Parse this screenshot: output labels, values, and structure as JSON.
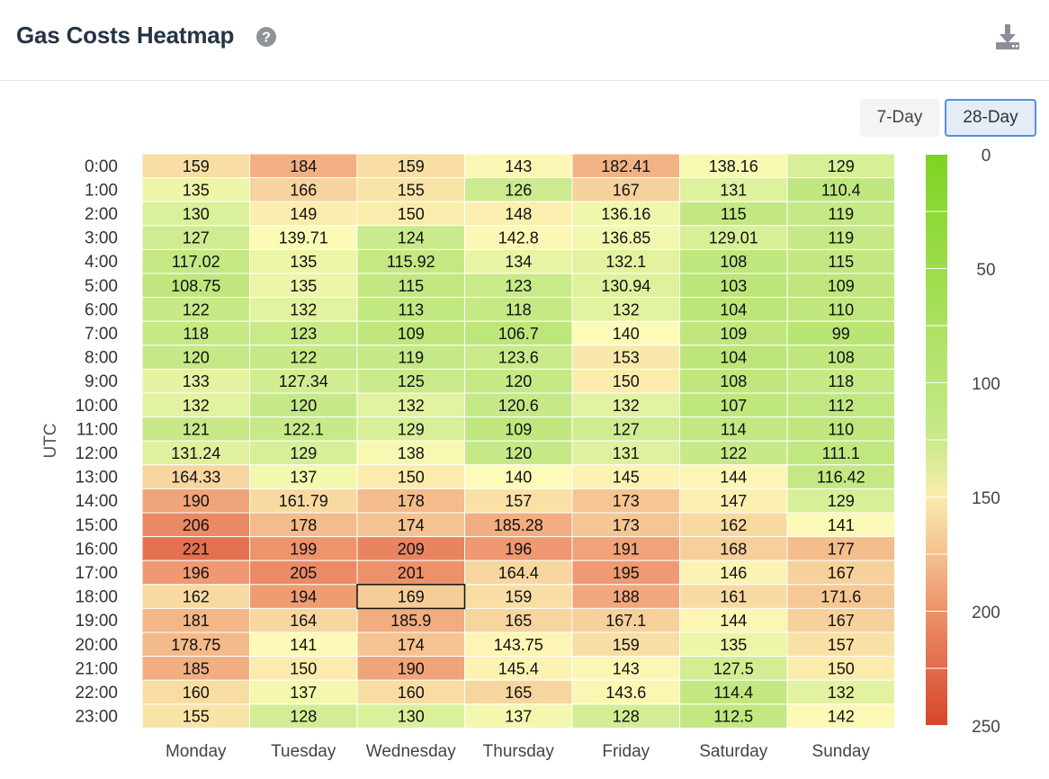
{
  "header": {
    "title": "Gas Costs Heatmap",
    "help_icon": "question-circle-icon",
    "download_icon": "download-icon"
  },
  "range_buttons": [
    {
      "label": "7-Day",
      "active": false
    },
    {
      "label": "28-Day",
      "active": true
    }
  ],
  "colors": {
    "low": "#7ed321",
    "mid": "#fdfbb7",
    "high": "#d7442a",
    "accent": "#5a8fd6"
  },
  "chart_data": {
    "type": "heatmap",
    "title": "",
    "xlabel": "",
    "ylabel": "UTC",
    "x_categories": [
      "Monday",
      "Tuesday",
      "Wednesday",
      "Thursday",
      "Friday",
      "Saturday",
      "Sunday"
    ],
    "y_categories": [
      "0:00",
      "1:00",
      "2:00",
      "3:00",
      "4:00",
      "5:00",
      "6:00",
      "7:00",
      "8:00",
      "9:00",
      "10:00",
      "11:00",
      "12:00",
      "13:00",
      "14:00",
      "15:00",
      "16:00",
      "17:00",
      "18:00",
      "19:00",
      "20:00",
      "21:00",
      "22:00",
      "23:00"
    ],
    "values": [
      [
        "159",
        "184",
        "159",
        "143",
        "182.41",
        "138.16",
        "129"
      ],
      [
        "135",
        "166",
        "155",
        "126",
        "167",
        "131",
        "110.4"
      ],
      [
        "130",
        "149",
        "150",
        "148",
        "136.16",
        "115",
        "119"
      ],
      [
        "127",
        "139.71",
        "124",
        "142.8",
        "136.85",
        "129.01",
        "119"
      ],
      [
        "117.02",
        "135",
        "115.92",
        "134",
        "132.1",
        "108",
        "115"
      ],
      [
        "108.75",
        "135",
        "115",
        "123",
        "130.94",
        "103",
        "109"
      ],
      [
        "122",
        "132",
        "113",
        "118",
        "132",
        "104",
        "110"
      ],
      [
        "118",
        "123",
        "109",
        "106.7",
        "140",
        "109",
        "99"
      ],
      [
        "120",
        "122",
        "119",
        "123.6",
        "153",
        "104",
        "108"
      ],
      [
        "133",
        "127.34",
        "125",
        "120",
        "150",
        "108",
        "118"
      ],
      [
        "132",
        "120",
        "132",
        "120.6",
        "132",
        "107",
        "112"
      ],
      [
        "121",
        "122.1",
        "129",
        "109",
        "127",
        "114",
        "110"
      ],
      [
        "131.24",
        "129",
        "138",
        "120",
        "131",
        "122",
        "111.1"
      ],
      [
        "164.33",
        "137",
        "150",
        "140",
        "145",
        "144",
        "116.42"
      ],
      [
        "190",
        "161.79",
        "178",
        "157",
        "173",
        "147",
        "129"
      ],
      [
        "206",
        "178",
        "174",
        "185.28",
        "173",
        "162",
        "141"
      ],
      [
        "221",
        "199",
        "209",
        "196",
        "191",
        "168",
        "177"
      ],
      [
        "196",
        "205",
        "201",
        "164.4",
        "195",
        "146",
        "167"
      ],
      [
        "162",
        "194",
        "169",
        "159",
        "188",
        "161",
        "171.6"
      ],
      [
        "181",
        "164",
        "185.9",
        "165",
        "167.1",
        "144",
        "167"
      ],
      [
        "178.75",
        "141",
        "174",
        "143.75",
        "159",
        "135",
        "157"
      ],
      [
        "185",
        "150",
        "190",
        "145.4",
        "143",
        "127.5",
        "150"
      ],
      [
        "160",
        "137",
        "160",
        "165",
        "143.6",
        "114.4",
        "132"
      ],
      [
        "155",
        "128",
        "130",
        "137",
        "128",
        "112.5",
        "142"
      ]
    ],
    "highlighted_cell": {
      "row": 18,
      "col": 2
    },
    "color_scale": {
      "min": 0,
      "max": 250,
      "tick_labels": [
        "0",
        "50",
        "100",
        "150",
        "200",
        "250"
      ]
    },
    "legend_placement": "right",
    "grid": false
  }
}
